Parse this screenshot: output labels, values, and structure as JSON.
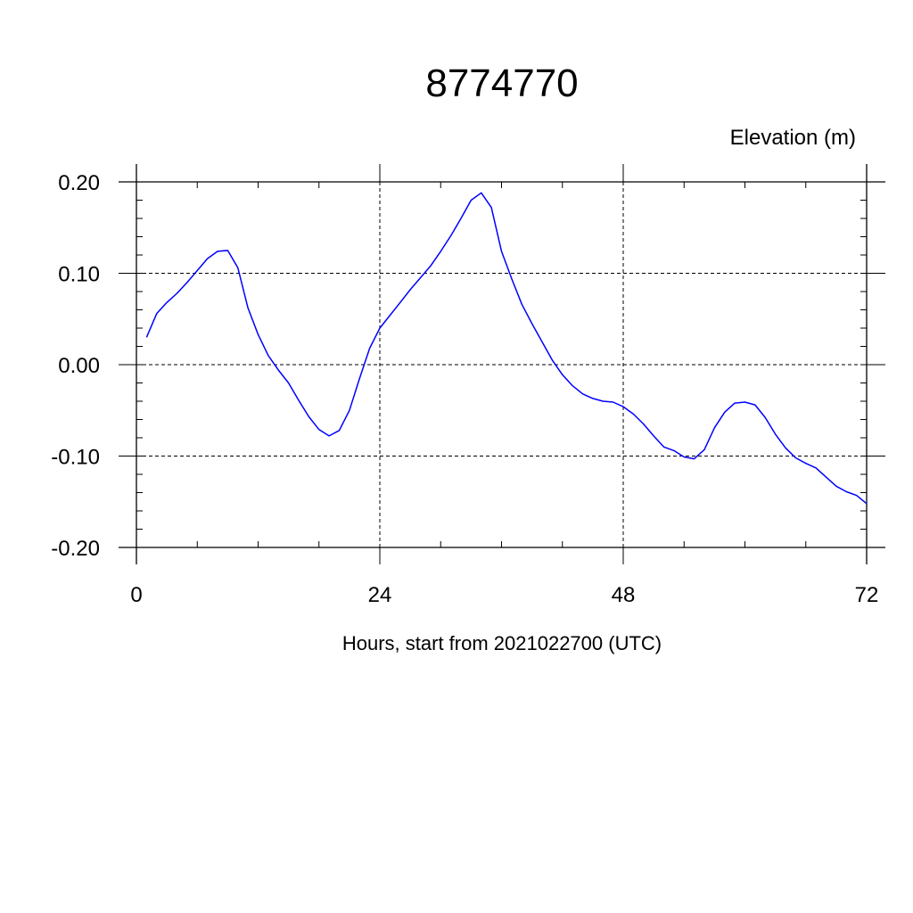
{
  "chart_data": {
    "type": "line",
    "title": "8774770",
    "ylabel": "Elevation (m)",
    "xlabel": "Hours, start from 2021022700 (UTC)",
    "xlim": [
      0,
      72
    ],
    "ylim": [
      -0.2,
      0.2
    ],
    "xticks": [
      0,
      24,
      48,
      72
    ],
    "xtick_labels": [
      "0",
      "24",
      "48",
      "72"
    ],
    "yticks": [
      0.2,
      0.1,
      0.0,
      -0.1,
      -0.2
    ],
    "ytick_labels": [
      "0.20",
      "0.10",
      "0.00",
      "-0.10",
      "-0.20"
    ],
    "grid": true,
    "series": [
      {
        "color": "#0000ff",
        "x": [
          1,
          2,
          3,
          4,
          5,
          6,
          7,
          8,
          9,
          10,
          11,
          12,
          13,
          14,
          15,
          16,
          17,
          18,
          19,
          20,
          21,
          22,
          23,
          24,
          25,
          26,
          27,
          28,
          29,
          30,
          31,
          32,
          33,
          34,
          35,
          36,
          37,
          38,
          39,
          40,
          41,
          42,
          43,
          44,
          45,
          46,
          47,
          48,
          49,
          50,
          51,
          52,
          53,
          54,
          55,
          56,
          57,
          58,
          59,
          60,
          61,
          62,
          63,
          64,
          65,
          66,
          67,
          68,
          69,
          70,
          71,
          72
        ],
        "y": [
          0.03,
          0.056,
          0.068,
          0.078,
          0.09,
          0.103,
          0.116,
          0.124,
          0.125,
          0.106,
          0.062,
          0.033,
          0.01,
          -0.006,
          -0.02,
          -0.039,
          -0.057,
          -0.071,
          -0.078,
          -0.072,
          -0.05,
          -0.015,
          0.018,
          0.04,
          0.054,
          0.068,
          0.082,
          0.095,
          0.108,
          0.124,
          0.141,
          0.16,
          0.18,
          0.188,
          0.172,
          0.124,
          0.094,
          0.066,
          0.045,
          0.025,
          0.005,
          -0.011,
          -0.023,
          -0.032,
          -0.037,
          -0.04,
          -0.041,
          -0.046,
          -0.054,
          -0.065,
          -0.078,
          -0.09,
          -0.094,
          -0.101,
          -0.103,
          -0.093,
          -0.069,
          -0.052,
          -0.042,
          -0.041,
          -0.044,
          -0.058,
          -0.076,
          -0.091,
          -0.102,
          -0.108,
          -0.113,
          -0.123,
          -0.133,
          -0.139,
          -0.143,
          -0.152
        ]
      }
    ]
  }
}
